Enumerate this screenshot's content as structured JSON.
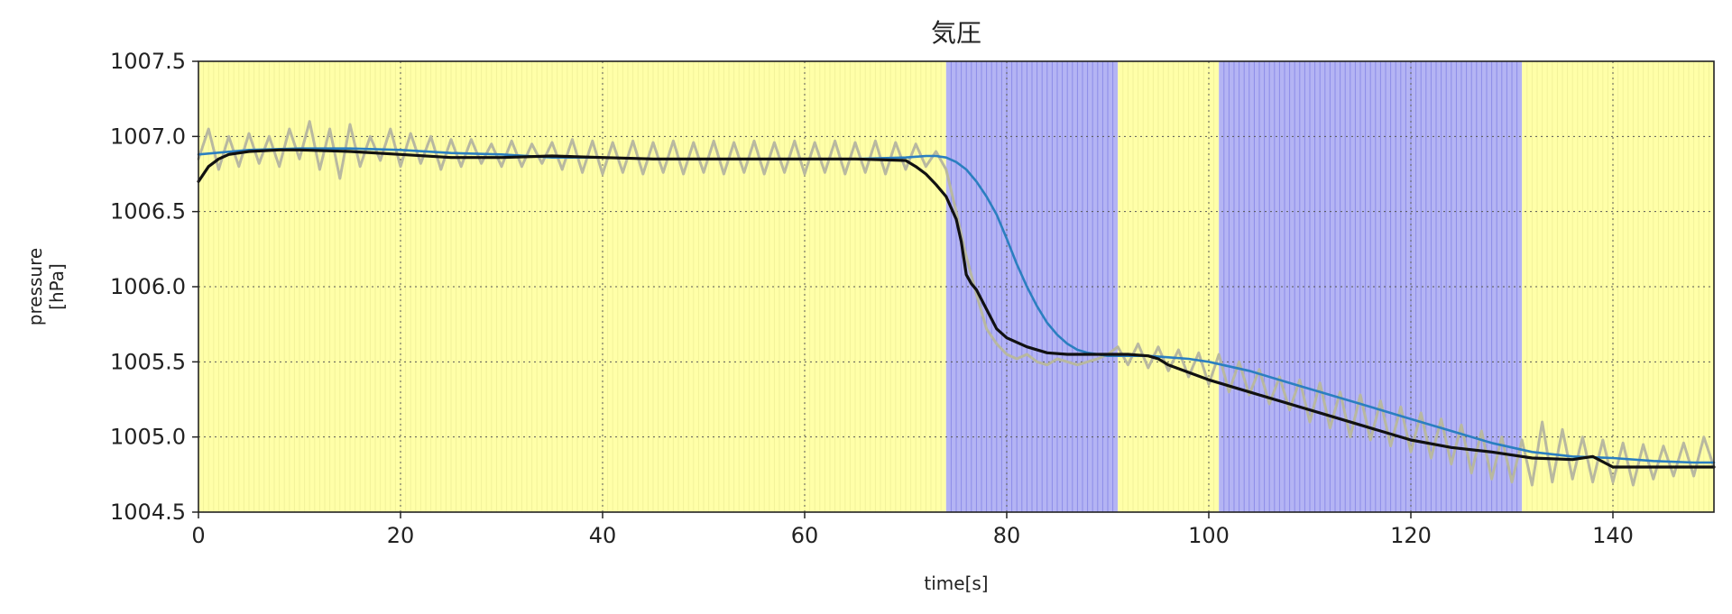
{
  "chart_data": {
    "type": "line",
    "title": "気圧",
    "xlabel": "time[s]",
    "ylabel_lines": [
      "pressure",
      "[hPa]"
    ],
    "xlim": [
      0,
      150
    ],
    "ylim": [
      1004.5,
      1007.5
    ],
    "xticks": [
      0,
      20,
      40,
      60,
      80,
      100,
      120,
      140
    ],
    "yticks": [
      1004.5,
      1005.0,
      1005.5,
      1006.0,
      1006.5,
      1007.0,
      1007.5
    ],
    "ytick_labels": [
      "1004.5",
      "1005.0",
      "1005.5",
      "1006.0",
      "1006.5",
      "1007.0",
      "1007.5"
    ],
    "grid": true,
    "background_bands": [
      {
        "x_start": 0,
        "x_end": 74,
        "color": "#ffffa8"
      },
      {
        "x_start": 74,
        "x_end": 91,
        "color": "#b4b4f4"
      },
      {
        "x_start": 91,
        "x_end": 101,
        "color": "#ffffa8"
      },
      {
        "x_start": 101,
        "x_end": 131,
        "color": "#b4b4f4"
      },
      {
        "x_start": 131,
        "x_end": 150,
        "color": "#ffffa8"
      }
    ],
    "series": [
      {
        "color": "#b8b8a0",
        "style": "raw",
        "x": [
          0,
          1,
          2,
          3,
          4,
          5,
          6,
          7,
          8,
          9,
          10,
          11,
          12,
          13,
          14,
          15,
          16,
          17,
          18,
          19,
          20,
          21,
          22,
          23,
          24,
          25,
          26,
          27,
          28,
          29,
          30,
          31,
          32,
          33,
          34,
          35,
          36,
          37,
          38,
          39,
          40,
          41,
          42,
          43,
          44,
          45,
          46,
          47,
          48,
          49,
          50,
          51,
          52,
          53,
          54,
          55,
          56,
          57,
          58,
          59,
          60,
          61,
          62,
          63,
          64,
          65,
          66,
          67,
          68,
          69,
          70,
          71,
          72,
          73,
          74,
          75,
          76,
          77,
          78,
          79,
          80,
          81,
          82,
          83,
          84,
          85,
          86,
          87,
          88,
          89,
          90,
          91,
          92,
          93,
          94,
          95,
          96,
          97,
          98,
          99,
          100,
          101,
          102,
          103,
          104,
          105,
          106,
          107,
          108,
          109,
          110,
          111,
          112,
          113,
          114,
          115,
          116,
          117,
          118,
          119,
          120,
          121,
          122,
          123,
          124,
          125,
          126,
          127,
          128,
          129,
          130,
          131,
          132,
          133,
          134,
          135,
          136,
          137,
          138,
          139,
          140,
          141,
          142,
          143,
          144,
          145,
          146,
          147,
          148,
          149,
          150
        ],
        "y": [
          1006.85,
          1007.05,
          1006.78,
          1007.0,
          1006.8,
          1007.02,
          1006.82,
          1007.0,
          1006.8,
          1007.05,
          1006.85,
          1007.1,
          1006.78,
          1007.05,
          1006.72,
          1007.08,
          1006.8,
          1007.0,
          1006.84,
          1007.05,
          1006.8,
          1007.02,
          1006.82,
          1007.0,
          1006.78,
          1006.98,
          1006.8,
          1006.98,
          1006.82,
          1006.95,
          1006.8,
          1006.97,
          1006.8,
          1006.95,
          1006.82,
          1006.96,
          1006.78,
          1006.98,
          1006.76,
          1006.97,
          1006.75,
          1006.96,
          1006.76,
          1006.97,
          1006.75,
          1006.96,
          1006.76,
          1006.97,
          1006.75,
          1006.96,
          1006.76,
          1006.97,
          1006.75,
          1006.96,
          1006.76,
          1006.97,
          1006.75,
          1006.96,
          1006.76,
          1006.97,
          1006.75,
          1006.96,
          1006.76,
          1006.97,
          1006.75,
          1006.96,
          1006.76,
          1006.97,
          1006.75,
          1006.96,
          1006.78,
          1006.95,
          1006.8,
          1006.9,
          1006.78,
          1006.5,
          1006.2,
          1005.95,
          1005.72,
          1005.62,
          1005.55,
          1005.52,
          1005.55,
          1005.5,
          1005.48,
          1005.52,
          1005.5,
          1005.48,
          1005.5,
          1005.52,
          1005.55,
          1005.6,
          1005.48,
          1005.62,
          1005.46,
          1005.6,
          1005.44,
          1005.58,
          1005.4,
          1005.56,
          1005.35,
          1005.55,
          1005.3,
          1005.5,
          1005.28,
          1005.45,
          1005.22,
          1005.4,
          1005.18,
          1005.38,
          1005.1,
          1005.36,
          1005.06,
          1005.3,
          1005.0,
          1005.28,
          1004.98,
          1005.24,
          1004.94,
          1005.2,
          1004.9,
          1005.16,
          1004.86,
          1005.12,
          1004.82,
          1005.08,
          1004.76,
          1005.04,
          1004.72,
          1005.0,
          1004.7,
          1004.98,
          1004.68,
          1005.1,
          1004.7,
          1005.05,
          1004.72,
          1005.0,
          1004.7,
          1004.98,
          1004.7,
          1004.96,
          1004.68,
          1004.95,
          1004.72,
          1004.94,
          1004.74,
          1004.96,
          1004.74,
          1005.0,
          1004.8
        ]
      },
      {
        "color": "#2b7fc0",
        "style": "smoothed-lagged",
        "x": [
          0,
          5,
          10,
          15,
          20,
          25,
          30,
          35,
          40,
          45,
          50,
          55,
          60,
          65,
          70,
          72,
          73,
          74,
          75,
          76,
          77,
          78,
          79,
          80,
          81,
          82,
          83,
          84,
          85,
          86,
          87,
          88,
          90,
          92,
          94,
          96,
          98,
          100,
          104,
          108,
          112,
          116,
          120,
          124,
          128,
          132,
          136,
          140,
          144,
          148,
          150
        ],
        "y": [
          1006.88,
          1006.91,
          1006.92,
          1006.92,
          1006.91,
          1006.89,
          1006.88,
          1006.86,
          1006.86,
          1006.85,
          1006.85,
          1006.85,
          1006.85,
          1006.85,
          1006.86,
          1006.87,
          1006.87,
          1006.86,
          1006.83,
          1006.78,
          1006.7,
          1006.6,
          1006.48,
          1006.32,
          1006.15,
          1006.0,
          1005.87,
          1005.76,
          1005.68,
          1005.62,
          1005.58,
          1005.56,
          1005.54,
          1005.54,
          1005.54,
          1005.53,
          1005.52,
          1005.5,
          1005.44,
          1005.36,
          1005.28,
          1005.2,
          1005.12,
          1005.04,
          1004.96,
          1004.9,
          1004.87,
          1004.86,
          1004.84,
          1004.83,
          1004.83
        ]
      },
      {
        "color": "#111111",
        "style": "smoothed",
        "x": [
          0,
          1,
          2,
          3,
          5,
          8,
          10,
          15,
          20,
          25,
          30,
          35,
          40,
          45,
          50,
          55,
          60,
          65,
          70,
          71,
          72,
          73,
          74,
          75,
          75.5,
          76,
          76.5,
          77,
          78,
          79,
          80,
          82,
          84,
          86,
          88,
          90,
          92,
          94,
          95,
          96,
          98,
          100,
          104,
          108,
          112,
          116,
          120,
          124,
          128,
          132,
          136,
          138,
          140,
          144,
          148,
          150
        ],
        "y": [
          1006.7,
          1006.8,
          1006.85,
          1006.88,
          1006.9,
          1006.91,
          1006.91,
          1006.9,
          1006.88,
          1006.86,
          1006.86,
          1006.87,
          1006.86,
          1006.85,
          1006.85,
          1006.85,
          1006.85,
          1006.85,
          1006.84,
          1006.8,
          1006.75,
          1006.68,
          1006.6,
          1006.45,
          1006.3,
          1006.08,
          1006.02,
          1005.98,
          1005.85,
          1005.72,
          1005.66,
          1005.6,
          1005.56,
          1005.55,
          1005.55,
          1005.55,
          1005.55,
          1005.54,
          1005.52,
          1005.48,
          1005.43,
          1005.38,
          1005.3,
          1005.22,
          1005.14,
          1005.06,
          1004.98,
          1004.93,
          1004.9,
          1004.86,
          1004.85,
          1004.87,
          1004.8,
          1004.8,
          1004.8,
          1004.8
        ]
      }
    ]
  }
}
